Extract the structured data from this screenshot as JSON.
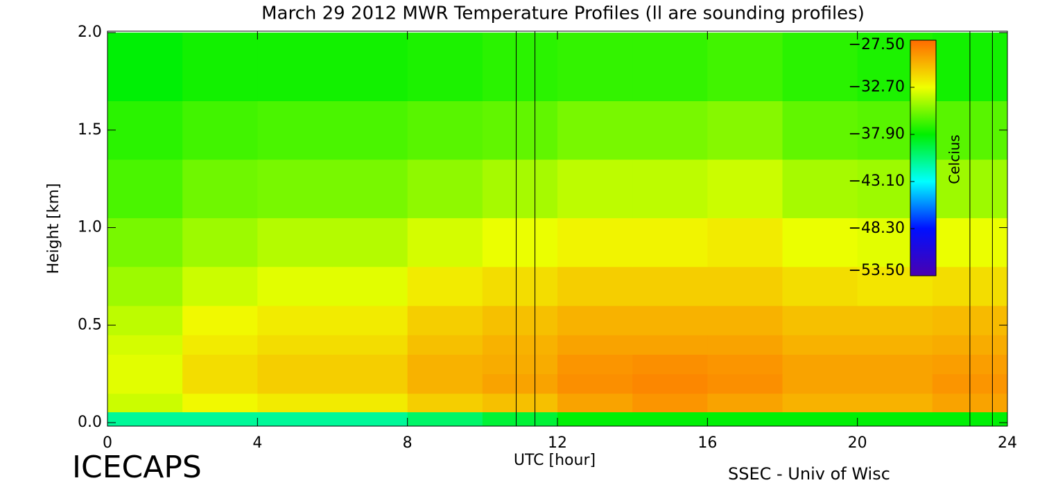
{
  "chart_data": {
    "type": "heatmap",
    "title": "March 29 2012 MWR Temperature Profiles (ll are sounding profiles)",
    "xlabel": "UTC [hour]",
    "ylabel": "Height [km]",
    "colorbar_label": "Celcius",
    "annotations": [
      "ICECAPS",
      "SSEC - Univ of Wisc"
    ],
    "xlim": [
      0,
      24
    ],
    "xticks": [
      0,
      4,
      8,
      12,
      16,
      20,
      24
    ],
    "ylim": [
      0,
      2
    ],
    "yticks": [
      {
        "value": 0,
        "label": "0.0"
      },
      {
        "value": 0.5,
        "label": "0.5"
      },
      {
        "value": 1,
        "label": "1.0"
      },
      {
        "value": 1.5,
        "label": "1.5"
      },
      {
        "value": 2,
        "label": "2.0"
      }
    ],
    "clim": [
      -53.5,
      -27.5
    ],
    "cticks": [
      {
        "value": -27.5,
        "label": "−27.50"
      },
      {
        "value": -32.7,
        "label": "−32.70"
      },
      {
        "value": -37.9,
        "label": "−37.90"
      },
      {
        "value": -43.1,
        "label": "−43.10"
      },
      {
        "value": -48.3,
        "label": "−48.30"
      },
      {
        "value": -53.5,
        "label": "−53.50"
      }
    ],
    "colorscale": [
      "#4a00b0",
      "#0010ff",
      "#00ffff",
      "#00f000",
      "#f0ff00",
      "#ff6a00"
    ],
    "soundings": [
      10.9,
      11.4,
      23.0,
      23.6
    ],
    "x": [
      1,
      3,
      5,
      7,
      9,
      11,
      13,
      15,
      17,
      19,
      21,
      23
    ],
    "y": [
      0.01,
      0.1,
      0.2,
      0.3,
      0.4,
      0.5,
      0.7,
      0.9,
      1.2,
      1.5,
      1.8
    ],
    "z": [
      [
        -41,
        -41,
        -41,
        -41,
        -40,
        -39,
        -38,
        -38,
        -38,
        -38,
        -38,
        -38
      ],
      [
        -33.5,
        -32.5,
        -32,
        -32,
        -31,
        -30.5,
        -29.5,
        -29,
        -29.5,
        -30,
        -30,
        -29.5
      ],
      [
        -33,
        -31.5,
        -31,
        -31,
        -30,
        -29.5,
        -28.8,
        -28.5,
        -28.8,
        -29.5,
        -29.5,
        -29
      ],
      [
        -33,
        -31.5,
        -31,
        -31,
        -30,
        -29.8,
        -29,
        -28.8,
        -29,
        -29.5,
        -29.5,
        -29.3
      ],
      [
        -33.3,
        -32,
        -31.5,
        -31.5,
        -30.5,
        -30,
        -29.5,
        -29.5,
        -29.5,
        -30,
        -30,
        -29.8
      ],
      [
        -33.8,
        -32.5,
        -32,
        -32,
        -31,
        -30.5,
        -30,
        -30,
        -30,
        -30.5,
        -30.5,
        -30.3
      ],
      [
        -34.5,
        -33.5,
        -33,
        -33,
        -32,
        -31.5,
        -31,
        -31,
        -31,
        -31.5,
        -31.8,
        -31.5
      ],
      [
        -35.3,
        -34.5,
        -34,
        -34,
        -33.3,
        -32.8,
        -32.3,
        -32.3,
        -32,
        -32.8,
        -33,
        -32.8
      ],
      [
        -36.3,
        -35.5,
        -35.3,
        -35.3,
        -34.8,
        -34.3,
        -33.8,
        -33.8,
        -33.5,
        -34.3,
        -34.5,
        -34.5
      ],
      [
        -37,
        -36.5,
        -36.3,
        -36.3,
        -36,
        -35.8,
        -35.3,
        -35.3,
        -35,
        -35.8,
        -36,
        -36
      ],
      [
        -38,
        -37.5,
        -37.5,
        -37.5,
        -37.3,
        -37,
        -36.8,
        -36.8,
        -36.5,
        -37,
        -37.3,
        -37.5
      ]
    ]
  }
}
